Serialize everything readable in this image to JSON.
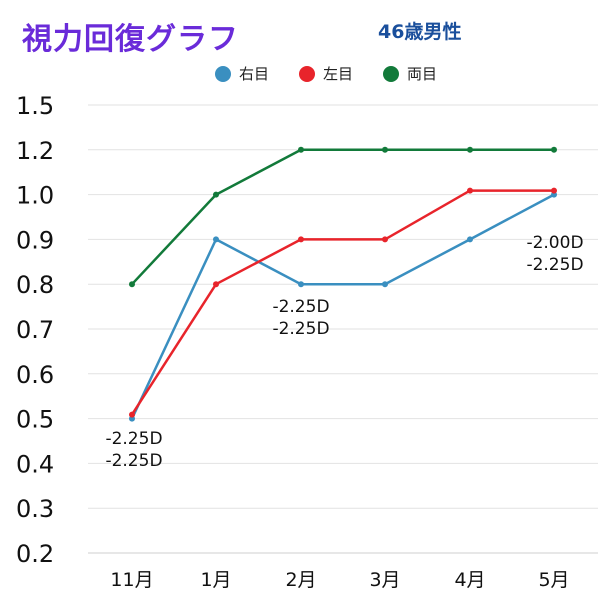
{
  "chart_data": {
    "type": "line",
    "title": "視力回復グラフ",
    "subtitle": "46歳男性",
    "categories": [
      "11月",
      "1月",
      "2月",
      "3月",
      "4月",
      "5月"
    ],
    "y_tick_labels": [
      "0.2",
      "0.3",
      "0.4",
      "0.5",
      "0.6",
      "0.7",
      "0.8",
      "0.9",
      "1.0",
      "1.2",
      "1.5"
    ],
    "y_axis_note": "equally spaced visual acuity steps",
    "grid": true,
    "legend_position": "top-center",
    "series": [
      {
        "name": "右目",
        "color": "#3a8fc0",
        "values": [
          0.5,
          0.9,
          0.8,
          0.8,
          0.9,
          1.0
        ]
      },
      {
        "name": "左目",
        "color": "#e8242b",
        "values": [
          0.5,
          0.8,
          0.9,
          0.9,
          1.0,
          1.0
        ]
      },
      {
        "name": "両目",
        "color": "#127a3a",
        "values": [
          0.8,
          1.0,
          1.2,
          1.2,
          1.2,
          1.2
        ]
      }
    ],
    "annotations": [
      {
        "category": "11月",
        "lines": [
          "-2.25D",
          "-2.25D"
        ]
      },
      {
        "category": "2月",
        "lines": [
          "-2.25D",
          "-2.25D"
        ]
      },
      {
        "category": "5月",
        "lines": [
          "-2.00D",
          "-2.25D"
        ]
      }
    ]
  }
}
